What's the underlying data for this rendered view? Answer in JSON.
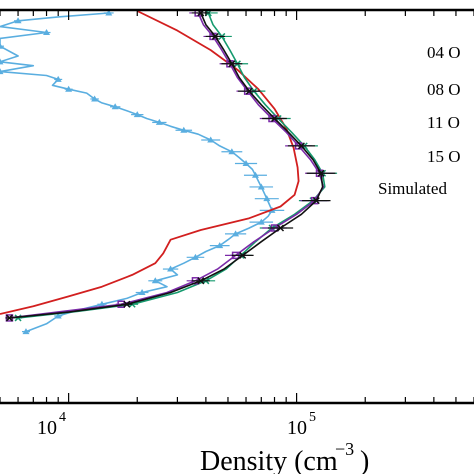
{
  "chart_data": {
    "type": "line",
    "xlabel": "Density (cm$^{-3}$)",
    "xlabel_text": "Density (cm",
    "xlabel_exp": "−3",
    "xlabel_close": ")",
    "xscale": "log",
    "xlim": [
      5000,
      600000
    ],
    "ylim": [
      0,
      1
    ],
    "x_ticks": [
      {
        "value": 10000,
        "base": "10",
        "exp": "4"
      },
      {
        "value": 100000,
        "base": "10",
        "exp": "5"
      }
    ],
    "legend": {
      "placement": "right",
      "entries": [
        "04 O",
        "08 O",
        "11 O",
        "15 O",
        "Simulated"
      ]
    },
    "colors": {
      "obs_04": "#5aaee0",
      "obs_08": "#111111",
      "obs_11": "#7b2aa8",
      "obs_15": "#159a6e",
      "simulated": "#d21f1f"
    },
    "series": [
      {
        "name": "04 O",
        "color": "#5aaee0",
        "marker": "triangle",
        "points": [
          {
            "x": 15000,
            "y": 0.995
          },
          {
            "x": 9000,
            "y": 0.985
          },
          {
            "x": 6000,
            "y": 0.975
          },
          {
            "x": 5000,
            "y": 0.96
          },
          {
            "x": 8000,
            "y": 0.945
          },
          {
            "x": 5000,
            "y": 0.93
          },
          {
            "x": 5000,
            "y": 0.91
          },
          {
            "x": 6000,
            "y": 0.885
          },
          {
            "x": 5000,
            "y": 0.87
          },
          {
            "x": 7000,
            "y": 0.86
          },
          {
            "x": 5000,
            "y": 0.845
          },
          {
            "x": 8000,
            "y": 0.835
          },
          {
            "x": 9000,
            "y": 0.825
          },
          {
            "x": 8500,
            "y": 0.81
          },
          {
            "x": 10000,
            "y": 0.8
          },
          {
            "x": 12000,
            "y": 0.79
          },
          {
            "x": 13000,
            "y": 0.775
          },
          {
            "x": 14000,
            "y": 0.765
          },
          {
            "x": 16000,
            "y": 0.755
          },
          {
            "x": 18000,
            "y": 0.745
          },
          {
            "x": 20000,
            "y": 0.735
          },
          {
            "x": 22000,
            "y": 0.725
          },
          {
            "x": 25000,
            "y": 0.715
          },
          {
            "x": 28000,
            "y": 0.705
          },
          {
            "x": 32000,
            "y": 0.695
          },
          {
            "x": 37000,
            "y": 0.685
          },
          {
            "x": 42000,
            "y": 0.67
          },
          {
            "x": 46000,
            "y": 0.655
          },
          {
            "x": 52000,
            "y": 0.64
          },
          {
            "x": 56000,
            "y": 0.625
          },
          {
            "x": 60000,
            "y": 0.61
          },
          {
            "x": 64000,
            "y": 0.595
          },
          {
            "x": 66000,
            "y": 0.58
          },
          {
            "x": 68000,
            "y": 0.565
          },
          {
            "x": 70000,
            "y": 0.55
          },
          {
            "x": 72000,
            "y": 0.535
          },
          {
            "x": 74000,
            "y": 0.52
          },
          {
            "x": 76000,
            "y": 0.505
          },
          {
            "x": 78000,
            "y": 0.49
          },
          {
            "x": 75000,
            "y": 0.475
          },
          {
            "x": 70000,
            "y": 0.46
          },
          {
            "x": 62000,
            "y": 0.445
          },
          {
            "x": 54000,
            "y": 0.43
          },
          {
            "x": 50000,
            "y": 0.415
          },
          {
            "x": 46000,
            "y": 0.4
          },
          {
            "x": 40000,
            "y": 0.385
          },
          {
            "x": 36000,
            "y": 0.37
          },
          {
            "x": 32000,
            "y": 0.355
          },
          {
            "x": 28000,
            "y": 0.34
          },
          {
            "x": 30000,
            "y": 0.325
          },
          {
            "x": 24000,
            "y": 0.31
          },
          {
            "x": 27000,
            "y": 0.295
          },
          {
            "x": 21000,
            "y": 0.28
          },
          {
            "x": 18000,
            "y": 0.265
          },
          {
            "x": 14000,
            "y": 0.25
          },
          {
            "x": 11000,
            "y": 0.235
          },
          {
            "x": 9000,
            "y": 0.22
          },
          {
            "x": 8000,
            "y": 0.2
          },
          {
            "x": 6500,
            "y": 0.18
          }
        ]
      },
      {
        "name": "08 O",
        "color": "#111111",
        "marker": "x",
        "points": [
          {
            "x": 38000,
            "y": 0.995
          },
          {
            "x": 40000,
            "y": 0.965
          },
          {
            "x": 44000,
            "y": 0.935
          },
          {
            "x": 48000,
            "y": 0.9
          },
          {
            "x": 52000,
            "y": 0.865
          },
          {
            "x": 56000,
            "y": 0.83
          },
          {
            "x": 62000,
            "y": 0.795
          },
          {
            "x": 70000,
            "y": 0.76
          },
          {
            "x": 80000,
            "y": 0.725
          },
          {
            "x": 92000,
            "y": 0.69
          },
          {
            "x": 105000,
            "y": 0.655
          },
          {
            "x": 118000,
            "y": 0.62
          },
          {
            "x": 128000,
            "y": 0.585
          },
          {
            "x": 130000,
            "y": 0.55
          },
          {
            "x": 122000,
            "y": 0.515
          },
          {
            "x": 105000,
            "y": 0.48
          },
          {
            "x": 85000,
            "y": 0.445
          },
          {
            "x": 70000,
            "y": 0.41
          },
          {
            "x": 58000,
            "y": 0.375
          },
          {
            "x": 48000,
            "y": 0.34
          },
          {
            "x": 38000,
            "y": 0.31
          },
          {
            "x": 28000,
            "y": 0.28
          },
          {
            "x": 18000,
            "y": 0.25
          },
          {
            "x": 10000,
            "y": 0.23
          },
          {
            "x": 5500,
            "y": 0.215
          }
        ]
      },
      {
        "name": "11 O",
        "color": "#7b2aa8",
        "marker": "square",
        "points": [
          {
            "x": 37000,
            "y": 0.995
          },
          {
            "x": 39000,
            "y": 0.965
          },
          {
            "x": 43000,
            "y": 0.935
          },
          {
            "x": 47000,
            "y": 0.9
          },
          {
            "x": 51000,
            "y": 0.865
          },
          {
            "x": 55000,
            "y": 0.83
          },
          {
            "x": 61000,
            "y": 0.795
          },
          {
            "x": 68000,
            "y": 0.76
          },
          {
            "x": 78000,
            "y": 0.725
          },
          {
            "x": 90000,
            "y": 0.69
          },
          {
            "x": 102000,
            "y": 0.655
          },
          {
            "x": 115000,
            "y": 0.62
          },
          {
            "x": 126000,
            "y": 0.585
          },
          {
            "x": 131000,
            "y": 0.55
          },
          {
            "x": 120000,
            "y": 0.515
          },
          {
            "x": 100000,
            "y": 0.48
          },
          {
            "x": 80000,
            "y": 0.445
          },
          {
            "x": 65000,
            "y": 0.41
          },
          {
            "x": 54000,
            "y": 0.375
          },
          {
            "x": 45000,
            "y": 0.34
          },
          {
            "x": 36000,
            "y": 0.31
          },
          {
            "x": 27000,
            "y": 0.28
          },
          {
            "x": 17000,
            "y": 0.25
          },
          {
            "x": 9500,
            "y": 0.232
          },
          {
            "x": 5500,
            "y": 0.215
          }
        ]
      },
      {
        "name": "15 O",
        "color": "#159a6e",
        "marker": "x",
        "points": [
          {
            "x": 41000,
            "y": 0.995
          },
          {
            "x": 43000,
            "y": 0.965
          },
          {
            "x": 47000,
            "y": 0.935
          },
          {
            "x": 51000,
            "y": 0.9
          },
          {
            "x": 55000,
            "y": 0.865
          },
          {
            "x": 59000,
            "y": 0.83
          },
          {
            "x": 65000,
            "y": 0.795
          },
          {
            "x": 73000,
            "y": 0.76
          },
          {
            "x": 83000,
            "y": 0.725
          },
          {
            "x": 95000,
            "y": 0.69
          },
          {
            "x": 108000,
            "y": 0.655
          },
          {
            "x": 120000,
            "y": 0.62
          },
          {
            "x": 130000,
            "y": 0.585
          },
          {
            "x": 133000,
            "y": 0.55
          },
          {
            "x": 118000,
            "y": 0.515
          },
          {
            "x": 98000,
            "y": 0.48
          },
          {
            "x": 78000,
            "y": 0.445
          },
          {
            "x": 66000,
            "y": 0.41
          },
          {
            "x": 57000,
            "y": 0.375
          },
          {
            "x": 49000,
            "y": 0.34
          },
          {
            "x": 40000,
            "y": 0.31
          },
          {
            "x": 30000,
            "y": 0.28
          },
          {
            "x": 19000,
            "y": 0.25
          },
          {
            "x": 11000,
            "y": 0.232
          },
          {
            "x": 6000,
            "y": 0.215
          }
        ]
      },
      {
        "name": "Simulated",
        "color": "#d21f1f",
        "marker": "none",
        "points": [
          {
            "x": 20000,
            "y": 1.0
          },
          {
            "x": 30000,
            "y": 0.95
          },
          {
            "x": 42000,
            "y": 0.9
          },
          {
            "x": 55000,
            "y": 0.85
          },
          {
            "x": 68000,
            "y": 0.8
          },
          {
            "x": 80000,
            "y": 0.75
          },
          {
            "x": 90000,
            "y": 0.7
          },
          {
            "x": 97000,
            "y": 0.65
          },
          {
            "x": 101000,
            "y": 0.6
          },
          {
            "x": 102000,
            "y": 0.565
          },
          {
            "x": 98000,
            "y": 0.53
          },
          {
            "x": 85000,
            "y": 0.5
          },
          {
            "x": 62000,
            "y": 0.47
          },
          {
            "x": 38000,
            "y": 0.44
          },
          {
            "x": 28000,
            "y": 0.415
          },
          {
            "x": 26000,
            "y": 0.38
          },
          {
            "x": 24000,
            "y": 0.355
          },
          {
            "x": 19000,
            "y": 0.325
          },
          {
            "x": 14000,
            "y": 0.295
          },
          {
            "x": 10000,
            "y": 0.27
          },
          {
            "x": 7000,
            "y": 0.245
          },
          {
            "x": 5000,
            "y": 0.225
          }
        ]
      }
    ]
  }
}
